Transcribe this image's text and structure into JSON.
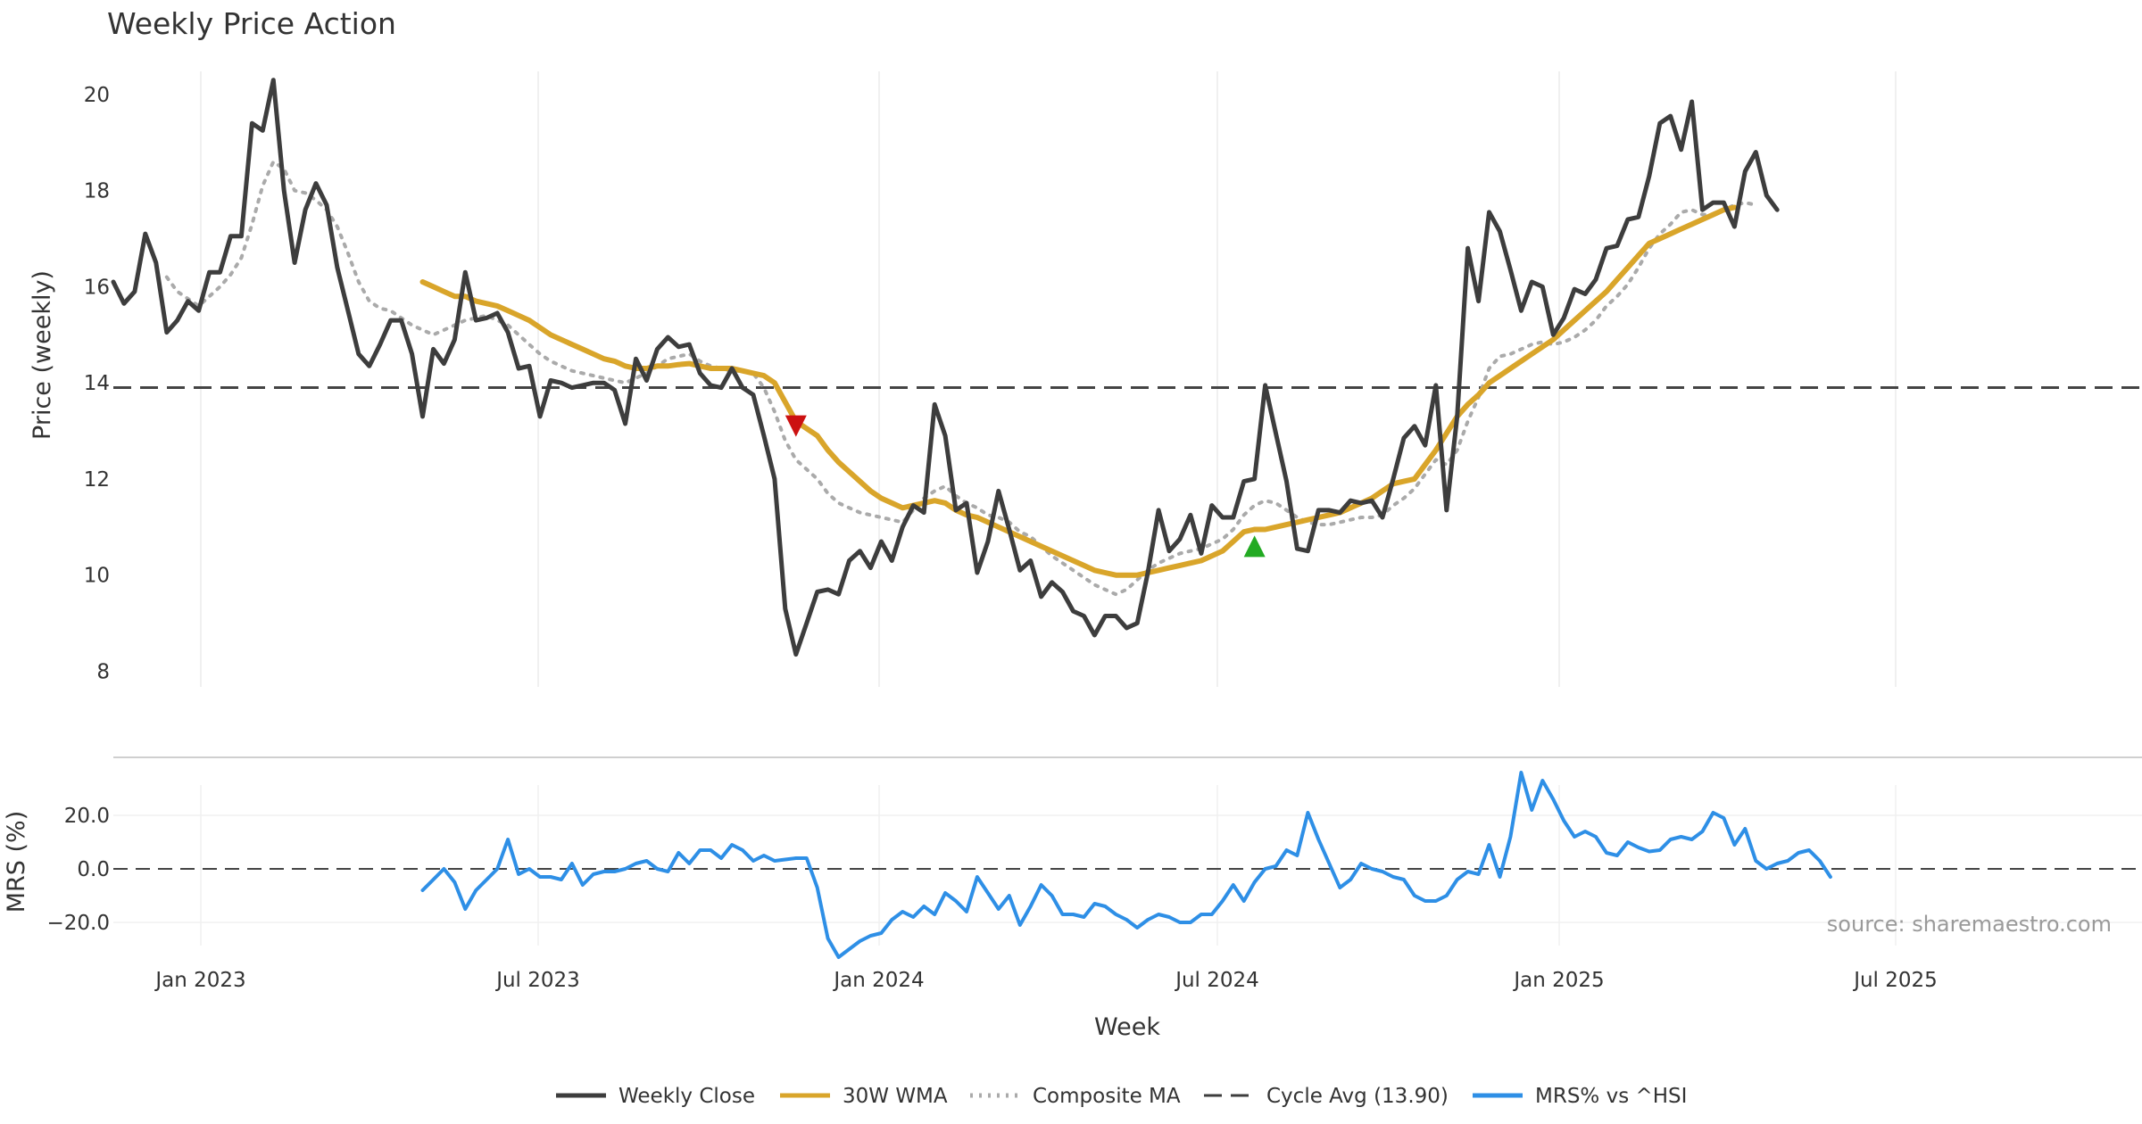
{
  "chart_data": {
    "type": "line",
    "title": "Weekly Price Action",
    "source": "source: sharemaestro.com",
    "xlabel": "Week",
    "x_ticks": [
      "Jan 2023",
      "Jul 2023",
      "Jan 2024",
      "Jul 2024",
      "Jan 2025",
      "Jul 2025"
    ],
    "price_panel": {
      "ylabel": "Price (weekly)",
      "ylim": [
        7.6,
        21.0
      ],
      "y_ticks": [
        "8",
        "10",
        "12",
        "14",
        "16",
        "18",
        "20"
      ],
      "cycle_avg": 13.9,
      "series": [
        {
          "name": "Weekly Close",
          "color": "#3d3d3d",
          "values": [
            16.1,
            15.65,
            15.9,
            17.1,
            16.5,
            15.05,
            15.3,
            15.7,
            15.5,
            16.3,
            16.3,
            17.05,
            17.05,
            19.4,
            19.25,
            20.3,
            18.0,
            16.5,
            17.6,
            18.15,
            17.7,
            16.4,
            15.5,
            14.6,
            14.35,
            14.8,
            15.3,
            15.3,
            14.6,
            13.3,
            14.7,
            14.4,
            14.9,
            16.3,
            15.3,
            15.35,
            15.45,
            15.05,
            14.3,
            14.35,
            13.3,
            14.05,
            14.0,
            13.9,
            13.95,
            14.0,
            14.0,
            13.85,
            13.15,
            14.5,
            14.05,
            14.7,
            14.95,
            14.75,
            14.8,
            14.2,
            13.95,
            13.9,
            14.3,
            13.9,
            13.75,
            12.9,
            12.0,
            9.3,
            8.35,
            9.0,
            9.65,
            9.7,
            9.6,
            10.3,
            10.5,
            10.15,
            10.7,
            10.3,
            11.0,
            11.45,
            11.3,
            13.55,
            12.9,
            11.35,
            11.5,
            10.05,
            10.7,
            11.75,
            10.95,
            10.1,
            10.3,
            9.55,
            9.85,
            9.65,
            9.25,
            9.15,
            8.75,
            9.15,
            9.15,
            8.9,
            9.0,
            10.05,
            11.35,
            10.5,
            10.75,
            11.25,
            10.45,
            11.45,
            11.2,
            11.2,
            11.95,
            12.0,
            13.95,
            12.95,
            11.95,
            10.55,
            10.5,
            11.35,
            11.35,
            11.3,
            11.55,
            11.5,
            11.55,
            11.2,
            12.0,
            12.85,
            13.1,
            12.7,
            13.95,
            11.35,
            13.3,
            16.8,
            15.7,
            17.55,
            17.15,
            16.35,
            15.5,
            16.1,
            16.0,
            15.0,
            15.35,
            15.95,
            15.85,
            16.15,
            16.8,
            16.85,
            17.4,
            17.45,
            18.3,
            19.4,
            19.55,
            18.85,
            19.85,
            17.6,
            17.75,
            17.75,
            17.25,
            18.4,
            18.8,
            17.9,
            17.6
          ]
        },
        {
          "name": "30W WMA",
          "color": "#d9a52a",
          "values": [
            null,
            null,
            null,
            null,
            null,
            null,
            null,
            null,
            null,
            null,
            null,
            null,
            null,
            null,
            null,
            null,
            null,
            null,
            null,
            null,
            null,
            null,
            null,
            null,
            null,
            null,
            null,
            null,
            null,
            16.1,
            16.0,
            15.9,
            15.8,
            15.8,
            15.7,
            15.65,
            15.6,
            15.5,
            15.4,
            15.3,
            15.15,
            15.0,
            14.9,
            14.8,
            14.7,
            14.6,
            14.5,
            14.45,
            14.35,
            14.3,
            14.3,
            14.35,
            14.35,
            14.38,
            14.4,
            14.35,
            14.3,
            14.3,
            14.3,
            14.25,
            14.2,
            14.15,
            14.0,
            13.6,
            13.2,
            13.05,
            12.9,
            12.6,
            12.35,
            12.15,
            11.95,
            11.75,
            11.6,
            11.5,
            11.4,
            11.45,
            11.5,
            11.55,
            11.5,
            11.35,
            11.25,
            11.2,
            11.1,
            11.0,
            10.9,
            10.8,
            10.7,
            10.6,
            10.5,
            10.4,
            10.3,
            10.2,
            10.1,
            10.05,
            10.0,
            10.0,
            10.0,
            10.05,
            10.1,
            10.15,
            10.2,
            10.25,
            10.3,
            10.4,
            10.5,
            10.7,
            10.9,
            10.95,
            10.95,
            11.0,
            11.05,
            11.1,
            11.15,
            11.2,
            11.25,
            11.3,
            11.4,
            11.5,
            11.6,
            11.75,
            11.9,
            11.95,
            12.0,
            12.3,
            12.6,
            12.95,
            13.3,
            13.55,
            13.75,
            14.0,
            14.15,
            14.3,
            14.45,
            14.6,
            14.75,
            14.9,
            15.1,
            15.3,
            15.5,
            15.7,
            15.9,
            16.15,
            16.4,
            16.65,
            16.9,
            17.0,
            17.1,
            17.2,
            17.3,
            17.4,
            17.5,
            17.6,
            17.65
          ]
        },
        {
          "name": "Composite MA",
          "color": "#aaaaaa",
          "values": [
            null,
            null,
            null,
            null,
            null,
            16.2,
            15.9,
            15.75,
            15.6,
            15.8,
            16.0,
            16.25,
            16.6,
            17.3,
            18.1,
            18.6,
            18.45,
            18.0,
            17.95,
            17.8,
            17.6,
            17.25,
            16.7,
            16.1,
            15.7,
            15.55,
            15.5,
            15.35,
            15.2,
            15.1,
            15.0,
            15.1,
            15.2,
            15.3,
            15.35,
            15.4,
            15.3,
            15.2,
            15.0,
            14.8,
            14.6,
            14.45,
            14.35,
            14.25,
            14.2,
            14.15,
            14.1,
            14.05,
            14.0,
            14.1,
            14.2,
            14.35,
            14.5,
            14.55,
            14.6,
            14.45,
            14.35,
            14.3,
            14.25,
            14.25,
            14.2,
            13.9,
            13.4,
            12.8,
            12.4,
            12.2,
            12.0,
            11.7,
            11.5,
            11.4,
            11.3,
            11.25,
            11.2,
            11.15,
            11.1,
            11.35,
            11.6,
            11.75,
            11.85,
            11.65,
            11.5,
            11.4,
            11.25,
            11.2,
            11.1,
            10.9,
            10.8,
            10.6,
            10.4,
            10.25,
            10.1,
            9.95,
            9.8,
            9.7,
            9.6,
            9.7,
            9.9,
            10.1,
            10.25,
            10.35,
            10.45,
            10.5,
            10.55,
            10.65,
            10.75,
            10.95,
            11.25,
            11.45,
            11.55,
            11.5,
            11.35,
            11.2,
            11.1,
            11.05,
            11.05,
            11.1,
            11.15,
            11.2,
            11.2,
            11.25,
            11.45,
            11.6,
            11.8,
            12.1,
            12.4,
            12.3,
            12.6,
            13.2,
            13.7,
            14.3,
            14.55,
            14.6,
            14.7,
            14.8,
            14.85,
            14.8,
            14.85,
            14.95,
            15.1,
            15.3,
            15.6,
            15.8,
            16.05,
            16.4,
            16.8,
            17.1,
            17.3,
            17.55,
            17.6,
            17.5,
            17.5,
            17.6,
            17.7,
            17.75,
            17.7
          ]
        }
      ],
      "markers": [
        {
          "type": "sell",
          "index": 64,
          "value": 13.1,
          "color": "#cc1111"
        },
        {
          "type": "buy",
          "index": 107,
          "value": 10.6,
          "color": "#22aa22"
        }
      ]
    },
    "mrs_panel": {
      "ylabel": "MRS (%)",
      "ylim": [
        -32,
        40
      ],
      "y_ticks": [
        "20.0",
        "0.0",
        "−20.0"
      ],
      "series": [
        {
          "name": "MRS% vs ^HSI",
          "color": "#2e8fe6",
          "values": [
            null,
            null,
            null,
            null,
            null,
            null,
            null,
            null,
            null,
            null,
            null,
            null,
            null,
            null,
            null,
            null,
            null,
            null,
            null,
            null,
            null,
            null,
            null,
            null,
            null,
            null,
            null,
            null,
            null,
            -8,
            -4,
            0,
            -5,
            -15,
            -8,
            -4,
            0,
            11,
            -2,
            0,
            -3,
            -3,
            -4,
            2,
            -6,
            -2,
            -1,
            -1,
            0,
            2,
            3,
            0,
            -1,
            6,
            2,
            7,
            7,
            4,
            9,
            7,
            3,
            5,
            3,
            3.5,
            4,
            4,
            -7,
            -26,
            -33,
            -30,
            -27,
            -25,
            -24,
            -19,
            -16,
            -18,
            -14,
            -17,
            -9,
            -12,
            -16,
            -3,
            -9,
            -15,
            -10,
            -21,
            -14,
            -6,
            -10,
            -17,
            -17,
            -18,
            -13,
            -14,
            -17,
            -19,
            -22,
            -19,
            -17,
            -18,
            -20,
            -20,
            -17,
            -17,
            -12,
            -6,
            -12,
            -5,
            0,
            1,
            7,
            5,
            21,
            11,
            2,
            -7,
            -4,
            2,
            0,
            -1,
            -3,
            -4,
            -10,
            -12,
            -12,
            -10,
            -4,
            -1,
            -2,
            9,
            -3,
            12,
            36,
            22,
            33,
            26,
            18,
            12,
            14,
            12,
            6,
            5,
            10,
            8,
            6.5,
            7,
            11,
            12,
            11,
            14,
            21,
            19,
            9,
            15,
            3,
            0,
            2,
            3,
            6,
            7,
            3,
            -3
          ]
        }
      ]
    },
    "legend": [
      {
        "label": "Weekly Close",
        "style": "solid",
        "color": "#3d3d3d"
      },
      {
        "label": "30W WMA",
        "style": "solid",
        "color": "#d9a52a"
      },
      {
        "label": "Composite MA",
        "style": "dotted",
        "color": "#aaaaaa"
      },
      {
        "label": "Cycle Avg (13.90)",
        "style": "dashed",
        "color": "#3d3d3d"
      },
      {
        "label": "MRS% vs ^HSI",
        "style": "solid",
        "color": "#2e8fe6"
      }
    ]
  }
}
